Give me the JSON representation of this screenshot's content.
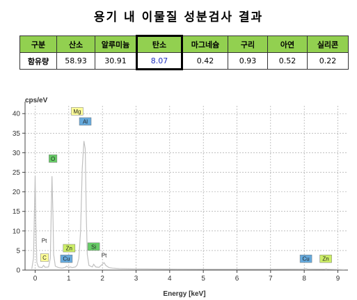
{
  "title": "용기 내 이물질 성분검사 결과",
  "table": {
    "header_label": "구분",
    "row_label": "함유량",
    "columns": [
      "산소",
      "알루미늄",
      "탄소",
      "마그네슘",
      "구리",
      "아연",
      "실리콘"
    ],
    "values": [
      "58.93",
      "30.91",
      "8.07",
      "0.42",
      "0.93",
      "0.52",
      "0.22"
    ],
    "highlight_index": 2,
    "header_color": "#92d050",
    "highlight_text_color": "#1f2fbf"
  },
  "chart_data": {
    "type": "line",
    "ylabel": "cps/eV",
    "xlabel": "Energy [keV]",
    "xlim": [
      -0.3,
      9.3
    ],
    "ylim": [
      0,
      42
    ],
    "xticks": [
      0,
      1,
      2,
      3,
      4,
      5,
      6,
      7,
      8,
      9
    ],
    "yticks": [
      0,
      5,
      10,
      15,
      20,
      25,
      30,
      35,
      40
    ],
    "grid": true,
    "line_color": "#c0c0c0",
    "series": [
      {
        "x": [
          -0.1,
          -0.05,
          0.0,
          0.02,
          0.05,
          0.1,
          0.2,
          0.25,
          0.3,
          0.4,
          0.45,
          0.5,
          0.53,
          0.55,
          0.6,
          0.7,
          0.8,
          0.9,
          0.93,
          1.0,
          1.05,
          1.1,
          1.2,
          1.25,
          1.3,
          1.35,
          1.4,
          1.45,
          1.49,
          1.52,
          1.55,
          1.6,
          1.7,
          1.74,
          1.8,
          1.9,
          2.0,
          2.05,
          2.1,
          2.2,
          2.3,
          2.5,
          3.0,
          4.0,
          5.0,
          6.0,
          7.0,
          8.0,
          8.05,
          8.1,
          8.6,
          8.65,
          8.7,
          9.0,
          9.2
        ],
        "y": [
          0.3,
          3,
          24,
          12,
          2,
          0.8,
          0.6,
          1.2,
          0.7,
          0.8,
          3,
          24,
          14,
          4,
          1,
          0.6,
          0.5,
          0.7,
          1,
          0.7,
          0.8,
          0.6,
          0.8,
          1.3,
          3,
          10,
          26,
          33,
          31,
          14,
          4,
          1.2,
          0.8,
          1.5,
          0.8,
          0.7,
          1.5,
          1.9,
          1.2,
          0.6,
          0.5,
          0.4,
          0.3,
          0.25,
          0.2,
          0.2,
          0.2,
          0.25,
          0.4,
          0.25,
          0.2,
          0.3,
          0.2,
          0.15,
          0.1
        ]
      }
    ],
    "annotations": [
      {
        "text": "C",
        "x": 0.28,
        "y": 3.2,
        "color": "#ffff99"
      },
      {
        "text": "Pt",
        "x": 0.27,
        "y": 7.6,
        "color": ""
      },
      {
        "text": "O",
        "x": 0.53,
        "y": 28.5,
        "color": "#66cc66"
      },
      {
        "text": "Zn",
        "x": 1.01,
        "y": 5.6,
        "color": "#ccee66"
      },
      {
        "text": "Cu",
        "x": 0.93,
        "y": 2.9,
        "color": "#66aadd"
      },
      {
        "text": "Mg",
        "x": 1.25,
        "y": 40.6,
        "color": "#ffff99"
      },
      {
        "text": "Al",
        "x": 1.49,
        "y": 38.0,
        "color": "#66aadd"
      },
      {
        "text": "Si",
        "x": 1.74,
        "y": 6.0,
        "color": "#66cc66"
      },
      {
        "text": "Pt",
        "x": 2.05,
        "y": 3.8,
        "color": ""
      },
      {
        "text": "Cu",
        "x": 8.05,
        "y": 2.9,
        "color": "#66aadd"
      },
      {
        "text": "Zn",
        "x": 8.64,
        "y": 2.9,
        "color": "#ccee66"
      }
    ]
  }
}
